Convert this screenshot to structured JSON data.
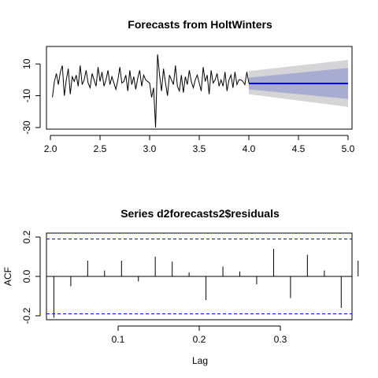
{
  "chart_data": [
    {
      "type": "line",
      "title": "Forecasts from HoltWinters",
      "xlabel": "",
      "ylabel": "",
      "xlim": [
        1.96,
        5.04
      ],
      "ylim": [
        -31,
        21
      ],
      "xticks": [
        2.0,
        2.5,
        3.0,
        3.5,
        4.0,
        4.5,
        5.0
      ],
      "xtick_labels": [
        "2.0",
        "2.5",
        "3.0",
        "3.5",
        "4.0",
        "4.5",
        "5.0"
      ],
      "yticks": [
        10,
        -10,
        -30
      ],
      "ytick_labels": [
        "10",
        "-10",
        "-30"
      ],
      "grid": false,
      "series": [
        {
          "kind": "history",
          "color": "#000000",
          "x": [
            2.02,
            2.04,
            2.06,
            2.08,
            2.1,
            2.12,
            2.14,
            2.16,
            2.18,
            2.2,
            2.22,
            2.24,
            2.26,
            2.28,
            2.3,
            2.32,
            2.34,
            2.36,
            2.38,
            2.4,
            2.42,
            2.44,
            2.46,
            2.48,
            2.5,
            2.52,
            2.54,
            2.56,
            2.58,
            2.6,
            2.62,
            2.64,
            2.66,
            2.68,
            2.7,
            2.72,
            2.74,
            2.76,
            2.78,
            2.8,
            2.82,
            2.84,
            2.86,
            2.88,
            2.9,
            2.92,
            2.94,
            2.96,
            2.98,
            3.0,
            3.02,
            3.04,
            3.06,
            3.08,
            3.1,
            3.12,
            3.14,
            3.16,
            3.18,
            3.2,
            3.22,
            3.24,
            3.26,
            3.28,
            3.3,
            3.32,
            3.34,
            3.36,
            3.38,
            3.4,
            3.42,
            3.44,
            3.46,
            3.48,
            3.5,
            3.52,
            3.54,
            3.56,
            3.58,
            3.6,
            3.62,
            3.64,
            3.66,
            3.68,
            3.7,
            3.72,
            3.74,
            3.76,
            3.78,
            3.8,
            3.82,
            3.84,
            3.86,
            3.88,
            3.9,
            3.92,
            3.94,
            3.96,
            3.98,
            4.0
          ],
          "y": [
            -11,
            -1,
            4,
            -3,
            5,
            9,
            -10,
            0,
            7,
            -9,
            2,
            -1,
            3,
            -4,
            9,
            -3,
            0,
            6,
            -2,
            -5,
            4,
            0,
            -4,
            8,
            -1,
            5,
            -4,
            0,
            6,
            -3,
            2,
            -2,
            -6,
            0,
            8,
            -2,
            -1,
            3,
            -7,
            6,
            -3,
            2,
            -6,
            1,
            6,
            -4,
            3,
            0,
            -1,
            -2,
            -11,
            -5,
            -30,
            16,
            3,
            -7,
            7,
            -2,
            -10,
            3,
            0,
            -3,
            9,
            -4,
            -7,
            3,
            -8,
            2,
            -3,
            6,
            -1,
            -5,
            0,
            3,
            -2,
            -7,
            8,
            -1,
            3,
            -9,
            6,
            -2,
            0,
            4,
            -4,
            0,
            -4,
            5,
            -7,
            0,
            3,
            -5,
            5,
            -3,
            0,
            0,
            -1,
            -3,
            5,
            -2
          ]
        }
      ],
      "forecast": {
        "x": [
          4.0,
          5.0
        ],
        "mean": [
          -2.3,
          -2.3
        ],
        "lo80": [
          -6,
          -12
        ],
        "hi80": [
          1.4,
          7.5
        ],
        "lo95": [
          -9,
          -17
        ],
        "hi95": [
          5.5,
          12.5
        ],
        "mean_color": "#0000ff",
        "band80_color": "#a9acd1",
        "band95_color": "#d5d5d7"
      }
    },
    {
      "type": "bar",
      "title": "Series d2forecasts2$residuals",
      "xlabel": "Lag",
      "ylabel": "ACF",
      "xlim": [
        0.0117,
        0.3883
      ],
      "ylim": [
        -0.22,
        0.22
      ],
      "xticks": [
        0.1,
        0.2,
        0.3
      ],
      "xtick_labels": [
        "0.1",
        "0.2",
        "0.3"
      ],
      "yticks": [
        -0.2,
        0.0,
        0.2
      ],
      "ytick_labels": [
        "-0.2",
        "0.0",
        "0.2"
      ],
      "grid": false,
      "ci": 0.19,
      "ci_color": "#0000ff",
      "lags": [
        0.0208,
        0.0417,
        0.0625,
        0.0833,
        0.1042,
        0.125,
        0.1458,
        0.1667,
        0.1875,
        0.2083,
        0.2292,
        0.25,
        0.2708,
        0.2917,
        0.3125,
        0.3333,
        0.3542,
        0.375,
        0.3958
      ],
      "values": [
        -0.21,
        -0.05,
        0.08,
        0.03,
        0.08,
        -0.025,
        0.1,
        0.075,
        0.02,
        -0.12,
        0.05,
        0.025,
        -0.04,
        0.14,
        -0.11,
        0.11,
        0.03,
        -0.16,
        0.08
      ]
    }
  ]
}
